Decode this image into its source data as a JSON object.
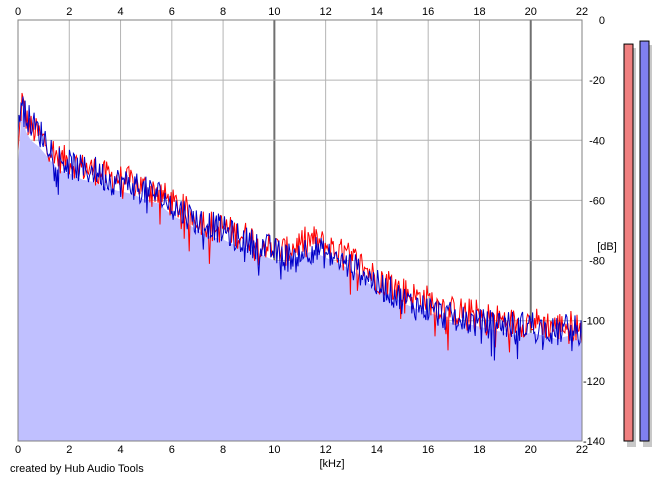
{
  "credit": "created by Hub Audio Tools",
  "chart_data": {
    "type": "line",
    "title": "",
    "xlabel": "[kHz]",
    "ylabel": "[dB]",
    "xlim": [
      0,
      22
    ],
    "ylim": [
      -140,
      0
    ],
    "x_ticks": [
      0,
      2,
      4,
      6,
      8,
      10,
      12,
      14,
      16,
      18,
      20,
      22
    ],
    "y_ticks": [
      0,
      -20,
      -40,
      -60,
      -80,
      -100,
      -120,
      -140
    ],
    "grid": true,
    "x_tick_labels_top_and_bottom": true,
    "y_tick_labels_side": "right",
    "series": [
      {
        "color": "#ff0000",
        "x": [
          0,
          0.15,
          0.3,
          0.5,
          0.8,
          1.2,
          1.6,
          2,
          2.5,
          3,
          3.5,
          4,
          4.5,
          5,
          5.5,
          6,
          6.5,
          7,
          7.5,
          8,
          8.5,
          9,
          9.5,
          10,
          10.5,
          11,
          11.5,
          12,
          12.5,
          13,
          13.5,
          14,
          14.5,
          15,
          15.5,
          16,
          16.5,
          17,
          17.5,
          18,
          18.5,
          19,
          19.5,
          20,
          20.5,
          21,
          21.5,
          22
        ],
        "values": [
          -45,
          -26,
          -33,
          -36,
          -38,
          -42,
          -46,
          -47,
          -49,
          -50,
          -52,
          -53,
          -54,
          -56,
          -57,
          -61,
          -63,
          -66,
          -68,
          -69,
          -71,
          -72,
          -74,
          -76,
          -77,
          -74,
          -73,
          -75,
          -77,
          -79,
          -82,
          -86,
          -87,
          -90,
          -92,
          -93,
          -95,
          -97,
          -97,
          -98,
          -99,
          -100,
          -101,
          -100,
          -101,
          -102,
          -101,
          -103
        ]
      },
      {
        "color": "#0000c8",
        "x": [
          0,
          0.15,
          0.3,
          0.5,
          0.8,
          1.2,
          1.6,
          2,
          2.5,
          3,
          3.5,
          4,
          4.5,
          5,
          5.5,
          6,
          6.5,
          7,
          7.5,
          8,
          8.5,
          9,
          9.5,
          10,
          10.5,
          11,
          11.5,
          12,
          12.5,
          13,
          13.5,
          14,
          14.5,
          15,
          15.5,
          16,
          16.5,
          17,
          17.5,
          18,
          18.5,
          19,
          19.5,
          20,
          20.5,
          21,
          21.5,
          22
        ],
        "values": [
          -40,
          -24,
          -31,
          -34,
          -37,
          -41,
          -46,
          -48,
          -50,
          -50,
          -53,
          -54,
          -55,
          -57,
          -58,
          -62,
          -64,
          -67,
          -68,
          -70,
          -72,
          -74,
          -75,
          -77,
          -79,
          -77,
          -76,
          -78,
          -80,
          -82,
          -84,
          -88,
          -90,
          -93,
          -95,
          -96,
          -98,
          -99,
          -100,
          -101,
          -101,
          -101,
          -102,
          -101,
          -103,
          -104,
          -102,
          -104
        ]
      }
    ],
    "meters": [
      {
        "color": "#f08080",
        "value_db": -8
      },
      {
        "color": "#8080f0",
        "value_db": -7
      }
    ]
  }
}
